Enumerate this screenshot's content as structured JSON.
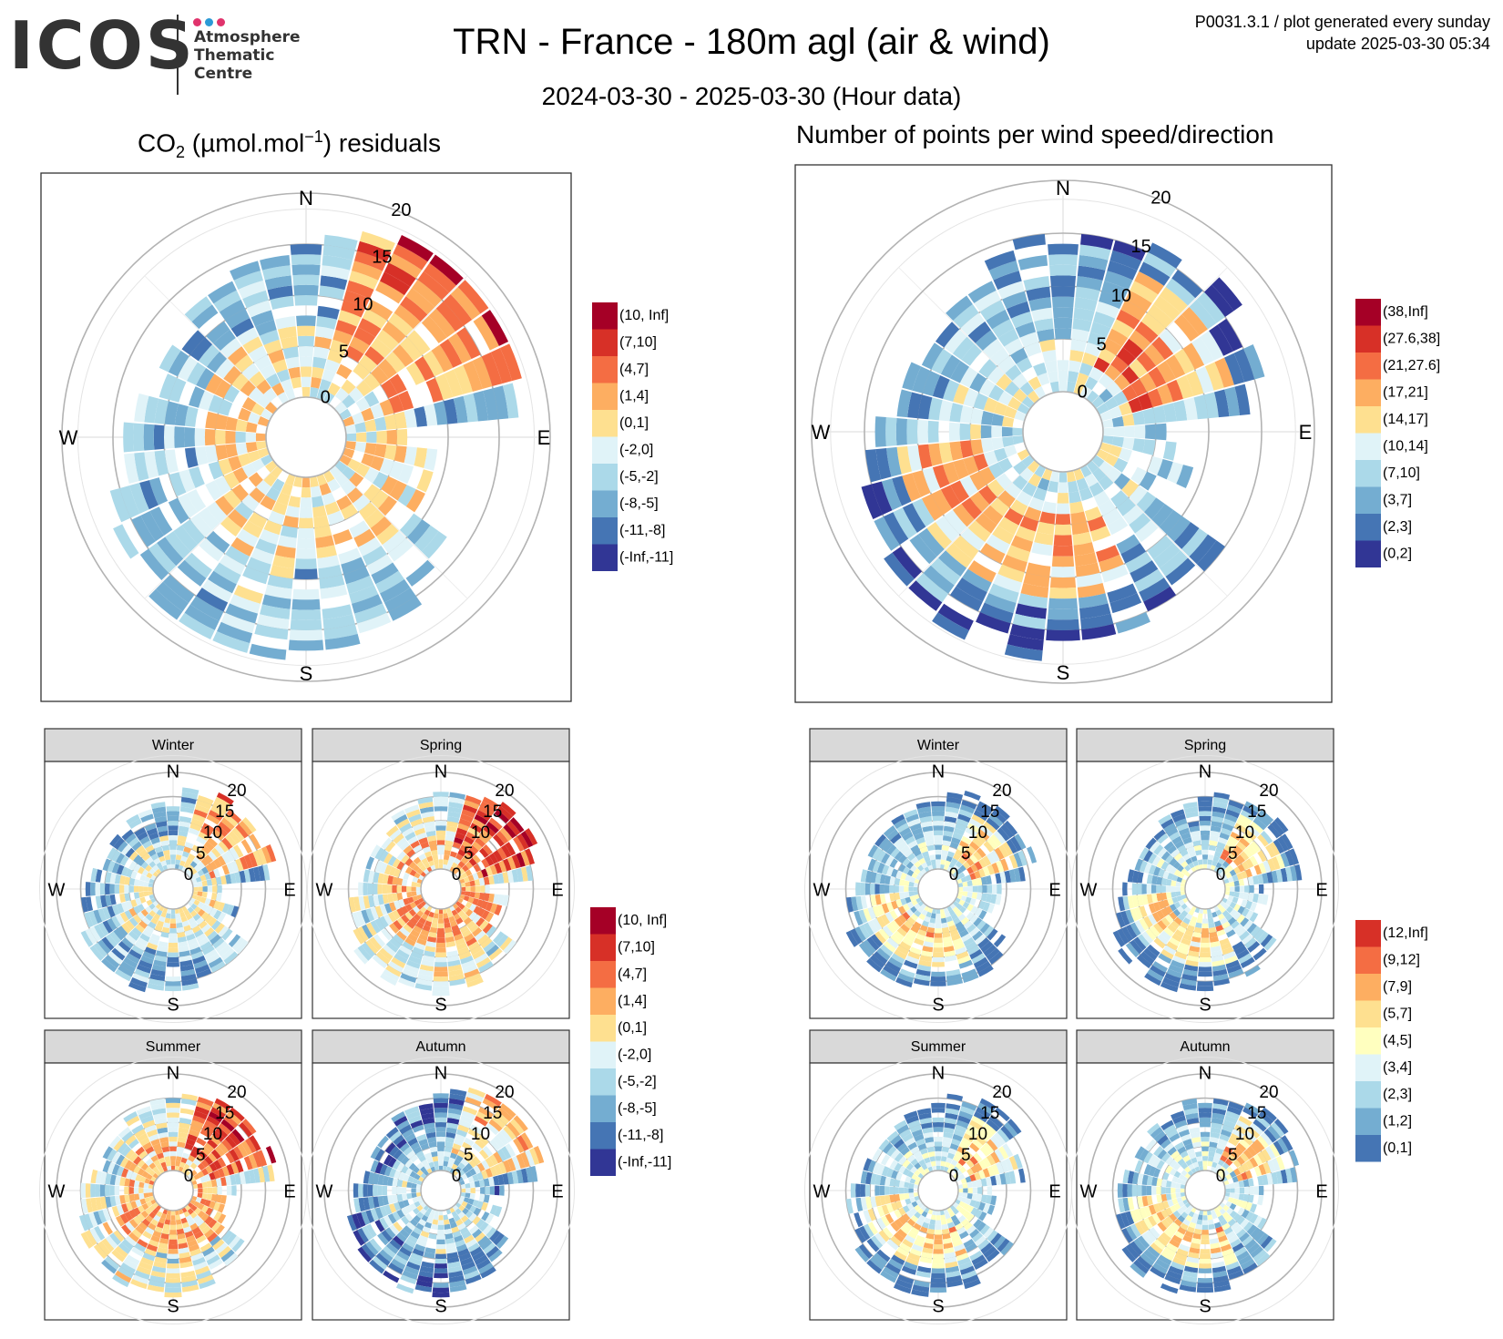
{
  "header": {
    "logo_word": "ICOS",
    "logo_lines": [
      "Atmosphere",
      "Thematic",
      "Centre"
    ],
    "logo_dot_colors": [
      "#e0336c",
      "#2b9ad6",
      "#e0336c"
    ],
    "title": "TRN - France - 180m agl (air & wind)",
    "subtitle": "2024-03-30 - 2025-03-30 (Hour data)",
    "meta_line1": "P0031.3.1 / plot generated every sunday",
    "meta_line2": "update  2025-03-30 05:34"
  },
  "left_title": {
    "prefix": "CO",
    "sub": "2",
    "middle": " (µmol.mol",
    "sup": "−1",
    "suffix": ") residuals"
  },
  "right_title": "Number of points per wind speed/direction",
  "compass": {
    "n": "N",
    "e": "E",
    "s": "S",
    "w": "W"
  },
  "season_labels": [
    "Winter",
    "Spring",
    "Summer",
    "Autumn"
  ],
  "chart_data": [
    {
      "type": "polar-heatmap",
      "name": "co2_residuals_annual",
      "r_ticks": [
        0,
        5,
        10,
        15,
        20
      ],
      "legend": [
        "(10, Inf]",
        "(7,10]",
        "(4,7]",
        "(1,4]",
        "(0,1]",
        "(-2,0]",
        "(-5,-2]",
        "(-8,-5]",
        "(-11,-8]",
        "(-Inf,-11]"
      ],
      "colors": [
        "#a50026",
        "#d73027",
        "#f46d43",
        "#fdae61",
        "#fee090",
        "#e0f3f8",
        "#abd9e9",
        "#74add1",
        "#4575b4",
        "#313695"
      ]
    },
    {
      "type": "polar-heatmap",
      "name": "points_per_wind_annual",
      "r_ticks": [
        0,
        5,
        10,
        15,
        20
      ],
      "legend": [
        "(38,Inf]",
        "(27.6,38]",
        "(21,27.6]",
        "(17,21]",
        "(14,17]",
        "(10,14]",
        "(7,10]",
        "(3,7]",
        "(2,3]",
        "(0,2]"
      ],
      "colors": [
        "#a50026",
        "#d73027",
        "#f46d43",
        "#fdae61",
        "#fee090",
        "#e0f3f8",
        "#abd9e9",
        "#74add1",
        "#4575b4",
        "#313695"
      ]
    },
    {
      "type": "polar-heatmap",
      "name": "co2_residuals_seasonal",
      "facets": [
        "Winter",
        "Spring",
        "Summer",
        "Autumn"
      ],
      "r_ticks": [
        0,
        5,
        10,
        15,
        20
      ],
      "legend": [
        "(10, Inf]",
        "(7,10]",
        "(4,7]",
        "(1,4]",
        "(0,1]",
        "(-2,0]",
        "(-5,-2]",
        "(-8,-5]",
        "(-11,-8]",
        "(-Inf,-11]"
      ],
      "colors": [
        "#a50026",
        "#d73027",
        "#f46d43",
        "#fdae61",
        "#fee090",
        "#e0f3f8",
        "#abd9e9",
        "#74add1",
        "#4575b4",
        "#313695"
      ]
    },
    {
      "type": "polar-heatmap",
      "name": "points_per_wind_seasonal",
      "facets": [
        "Winter",
        "Spring",
        "Summer",
        "Autumn"
      ],
      "r_ticks": [
        0,
        5,
        10,
        15,
        20
      ],
      "legend": [
        "(12,Inf]",
        "(9,12]",
        "(7,9]",
        "(5,7]",
        "(4,5]",
        "(3,4]",
        "(2,3]",
        "(1,2]",
        "(0,1]"
      ],
      "colors": [
        "#d73027",
        "#f46d43",
        "#fdae61",
        "#fee090",
        "#ffffbf",
        "#e0f3f8",
        "#abd9e9",
        "#74add1",
        "#4575b4"
      ]
    }
  ]
}
